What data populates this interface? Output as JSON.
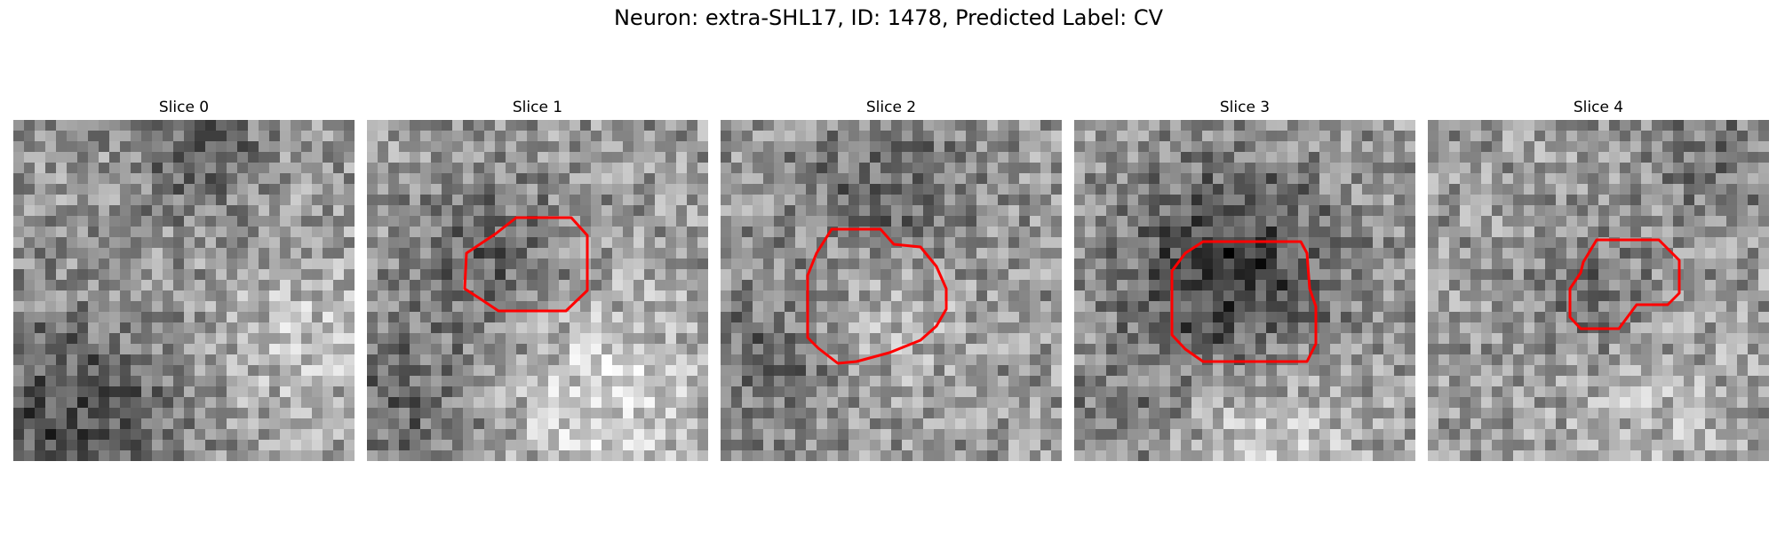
{
  "figure": {
    "title": "Neuron: extra-SHL17, ID: 1478, Predicted Label: CV"
  },
  "colors": {
    "roi_outline": "#ff0000",
    "background": "#ffffff"
  },
  "panels": [
    {
      "label": "Slice 0",
      "has_roi": false
    },
    {
      "label": "Slice 1",
      "has_roi": true
    },
    {
      "label": "Slice 2",
      "has_roi": true
    },
    {
      "label": "Slice 3",
      "has_roi": true
    },
    {
      "label": "Slice 4",
      "has_roi": true
    }
  ]
}
